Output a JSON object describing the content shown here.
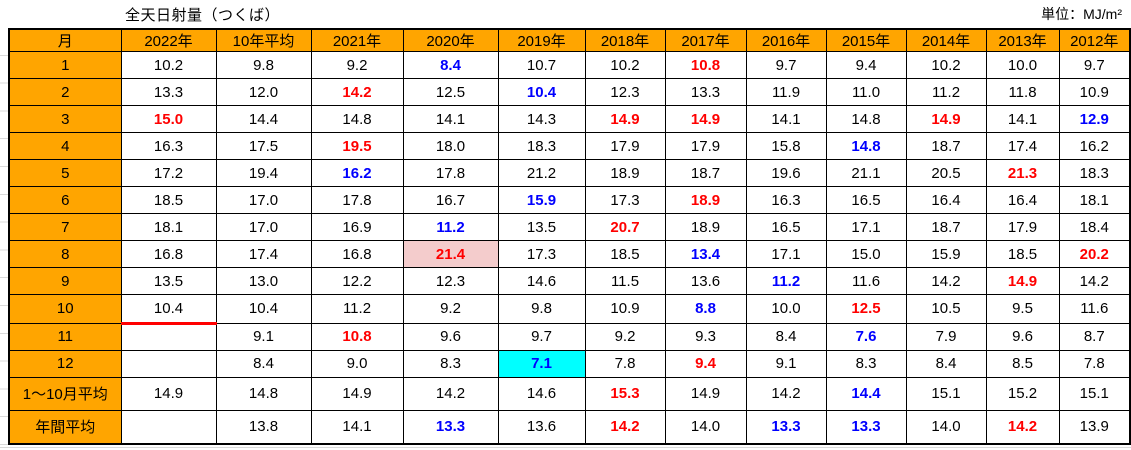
{
  "title": "全天日射量（つくば）",
  "unit": "単位：MJ/m²",
  "colors": {
    "header_bg": "#FFA500",
    "red_text": "#FF0000",
    "blue_text": "#0000FF",
    "pink_bg": "#F4CCCC",
    "cyan_bg": "#00FFFF",
    "grid_border": "#000000",
    "outside_gridline": "#D9D9D9"
  },
  "style_legend": {
    "r": "red bold text",
    "b": "blue bold text",
    "rp": "red bold text on pink background",
    "bc": "blue bold text on cyan background",
    "ul": "red thick bottom border"
  },
  "table": {
    "columns": [
      "月",
      "2022年",
      "10年平均",
      "2021年",
      "2020年",
      "2019年",
      "2018年",
      "2017年",
      "2016年",
      "2015年",
      "2014年",
      "2013年",
      "2012年"
    ],
    "rows": [
      {
        "label": "1",
        "values": [
          "10.2",
          "9.8",
          "9.2",
          "8.4",
          "10.7",
          "10.2",
          "10.8",
          "9.7",
          "9.4",
          "10.2",
          "10.0",
          "9.7"
        ],
        "styles": [
          "",
          "",
          "",
          "b",
          "",
          "",
          "r",
          "",
          "",
          "",
          "",
          ""
        ]
      },
      {
        "label": "2",
        "values": [
          "13.3",
          "12.0",
          "14.2",
          "12.5",
          "10.4",
          "12.3",
          "13.3",
          "11.9",
          "11.0",
          "11.2",
          "11.8",
          "10.9"
        ],
        "styles": [
          "",
          "",
          "r",
          "",
          "b",
          "",
          "",
          "",
          "",
          "",
          "",
          ""
        ]
      },
      {
        "label": "3",
        "values": [
          "15.0",
          "14.4",
          "14.8",
          "14.1",
          "14.3",
          "14.9",
          "14.9",
          "14.1",
          "14.8",
          "14.9",
          "14.1",
          "12.9"
        ],
        "styles": [
          "r",
          "",
          "",
          "",
          "",
          "r",
          "r",
          "",
          "",
          "r",
          "",
          "b"
        ]
      },
      {
        "label": "4",
        "values": [
          "16.3",
          "17.5",
          "19.5",
          "18.0",
          "18.3",
          "17.9",
          "17.9",
          "15.8",
          "14.8",
          "18.7",
          "17.4",
          "16.2"
        ],
        "styles": [
          "",
          "",
          "r",
          "",
          "",
          "",
          "",
          "",
          "b",
          "",
          "",
          ""
        ]
      },
      {
        "label": "5",
        "values": [
          "17.2",
          "19.4",
          "16.2",
          "17.8",
          "21.2",
          "18.9",
          "18.7",
          "19.6",
          "21.1",
          "20.5",
          "21.3",
          "18.3"
        ],
        "styles": [
          "",
          "",
          "b",
          "",
          "",
          "",
          "",
          "",
          "",
          "",
          "r",
          ""
        ]
      },
      {
        "label": "6",
        "values": [
          "18.5",
          "17.0",
          "17.8",
          "16.7",
          "15.9",
          "17.3",
          "18.9",
          "16.3",
          "16.5",
          "16.4",
          "16.4",
          "18.1"
        ],
        "styles": [
          "",
          "",
          "",
          "",
          "b",
          "",
          "r",
          "",
          "",
          "",
          "",
          ""
        ]
      },
      {
        "label": "7",
        "values": [
          "18.1",
          "17.0",
          "16.9",
          "11.2",
          "13.5",
          "20.7",
          "18.9",
          "16.5",
          "17.1",
          "18.7",
          "17.9",
          "18.4"
        ],
        "styles": [
          "",
          "",
          "",
          "b",
          "",
          "r",
          "",
          "",
          "",
          "",
          "",
          ""
        ]
      },
      {
        "label": "8",
        "values": [
          "16.8",
          "17.4",
          "16.8",
          "21.4",
          "17.3",
          "18.5",
          "13.4",
          "17.1",
          "15.0",
          "15.9",
          "18.5",
          "20.2"
        ],
        "styles": [
          "",
          "",
          "",
          "rp",
          "",
          "",
          "b",
          "",
          "",
          "",
          "",
          "r"
        ]
      },
      {
        "label": "9",
        "values": [
          "13.5",
          "13.0",
          "12.2",
          "12.3",
          "14.6",
          "11.5",
          "13.6",
          "11.2",
          "11.6",
          "14.2",
          "14.9",
          "14.2"
        ],
        "styles": [
          "",
          "",
          "",
          "",
          "",
          "",
          "",
          "b",
          "",
          "",
          "r",
          ""
        ]
      },
      {
        "label": "10",
        "values": [
          "10.4",
          "10.4",
          "11.2",
          "9.2",
          "9.8",
          "10.9",
          "8.8",
          "10.0",
          "12.5",
          "10.5",
          "9.5",
          "11.6"
        ],
        "styles": [
          "ul",
          "",
          "",
          "",
          "",
          "",
          "b",
          "",
          "r",
          "",
          "",
          ""
        ]
      },
      {
        "label": "11",
        "values": [
          "",
          "9.1",
          "10.8",
          "9.6",
          "9.7",
          "9.2",
          "9.3",
          "8.4",
          "7.6",
          "7.9",
          "9.6",
          "8.7"
        ],
        "styles": [
          "",
          "",
          "r",
          "",
          "",
          "",
          "",
          "",
          "b",
          "",
          "",
          ""
        ]
      },
      {
        "label": "12",
        "values": [
          "",
          "8.4",
          "9.0",
          "8.3",
          "7.1",
          "7.8",
          "9.4",
          "9.1",
          "8.3",
          "8.4",
          "8.5",
          "7.8"
        ],
        "styles": [
          "",
          "",
          "",
          "",
          "bc",
          "",
          "r",
          "",
          "",
          "",
          "",
          ""
        ]
      },
      {
        "label": "1〜10月平均",
        "values": [
          "14.9",
          "14.8",
          "14.9",
          "14.2",
          "14.6",
          "15.3",
          "14.9",
          "14.2",
          "14.4",
          "15.1",
          "15.2",
          "15.1"
        ],
        "styles": [
          "",
          "",
          "",
          "",
          "",
          "r",
          "",
          "",
          "b",
          "",
          "",
          ""
        ]
      },
      {
        "label": "年間平均",
        "values": [
          "",
          "13.8",
          "14.1",
          "13.3",
          "13.6",
          "14.2",
          "14.0",
          "13.3",
          "13.3",
          "14.0",
          "14.2",
          "13.9"
        ],
        "styles": [
          "",
          "",
          "",
          "b",
          "",
          "r",
          "",
          "b",
          "b",
          "",
          "r",
          ""
        ]
      }
    ]
  }
}
